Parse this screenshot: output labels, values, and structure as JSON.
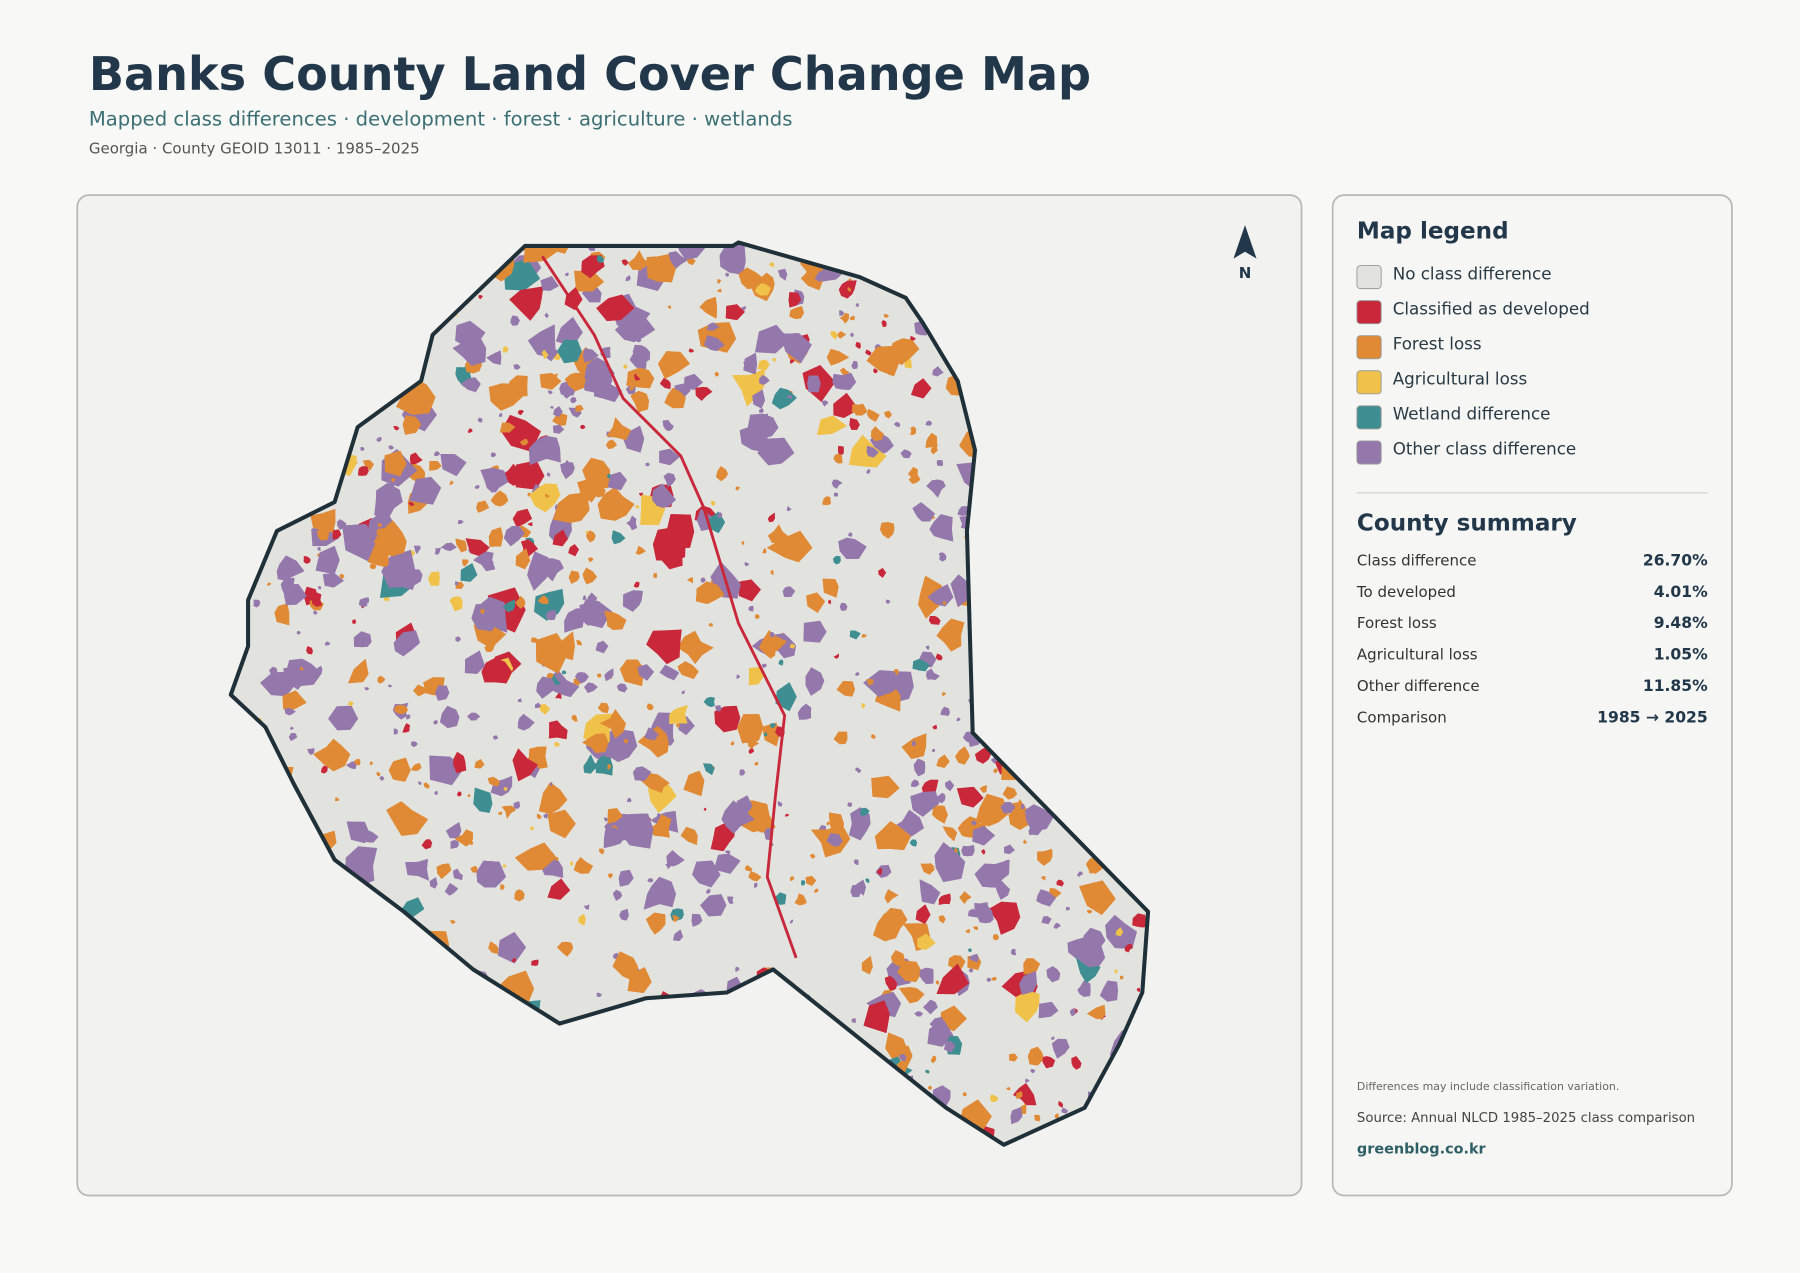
{
  "header": {
    "title": "Banks County Land Cover Change Map",
    "subtitle": "Mapped class differences · development · forest · agriculture · wetlands",
    "meta": "Georgia · County GEOID 13011 · 1985–2025"
  },
  "map": {
    "north_label": "N"
  },
  "legend": {
    "title": "Map legend",
    "items": [
      {
        "label": "No class difference",
        "color": "#e2e2de"
      },
      {
        "label": "Classified as developed",
        "color": "#c8283a"
      },
      {
        "label": "Forest loss",
        "color": "#e08a35"
      },
      {
        "label": "Agricultural loss",
        "color": "#f0c24a"
      },
      {
        "label": "Wetland difference",
        "color": "#3f8e92"
      },
      {
        "label": "Other class difference",
        "color": "#9478ab"
      }
    ]
  },
  "summary": {
    "title": "County summary",
    "rows": [
      [
        "Class difference",
        "26.70%"
      ],
      [
        "To developed",
        "4.01%"
      ],
      [
        "Forest loss",
        "9.48%"
      ],
      [
        "Agricultural loss",
        "1.05%"
      ],
      [
        "Other difference",
        "11.85%"
      ],
      [
        "Comparison",
        "1985 → 2025"
      ]
    ]
  },
  "footer": {
    "note": "Differences may include classification variation.",
    "source": "Source: Annual NLCD 1985–2025 class comparison",
    "site": "greenblog.co.kr"
  }
}
